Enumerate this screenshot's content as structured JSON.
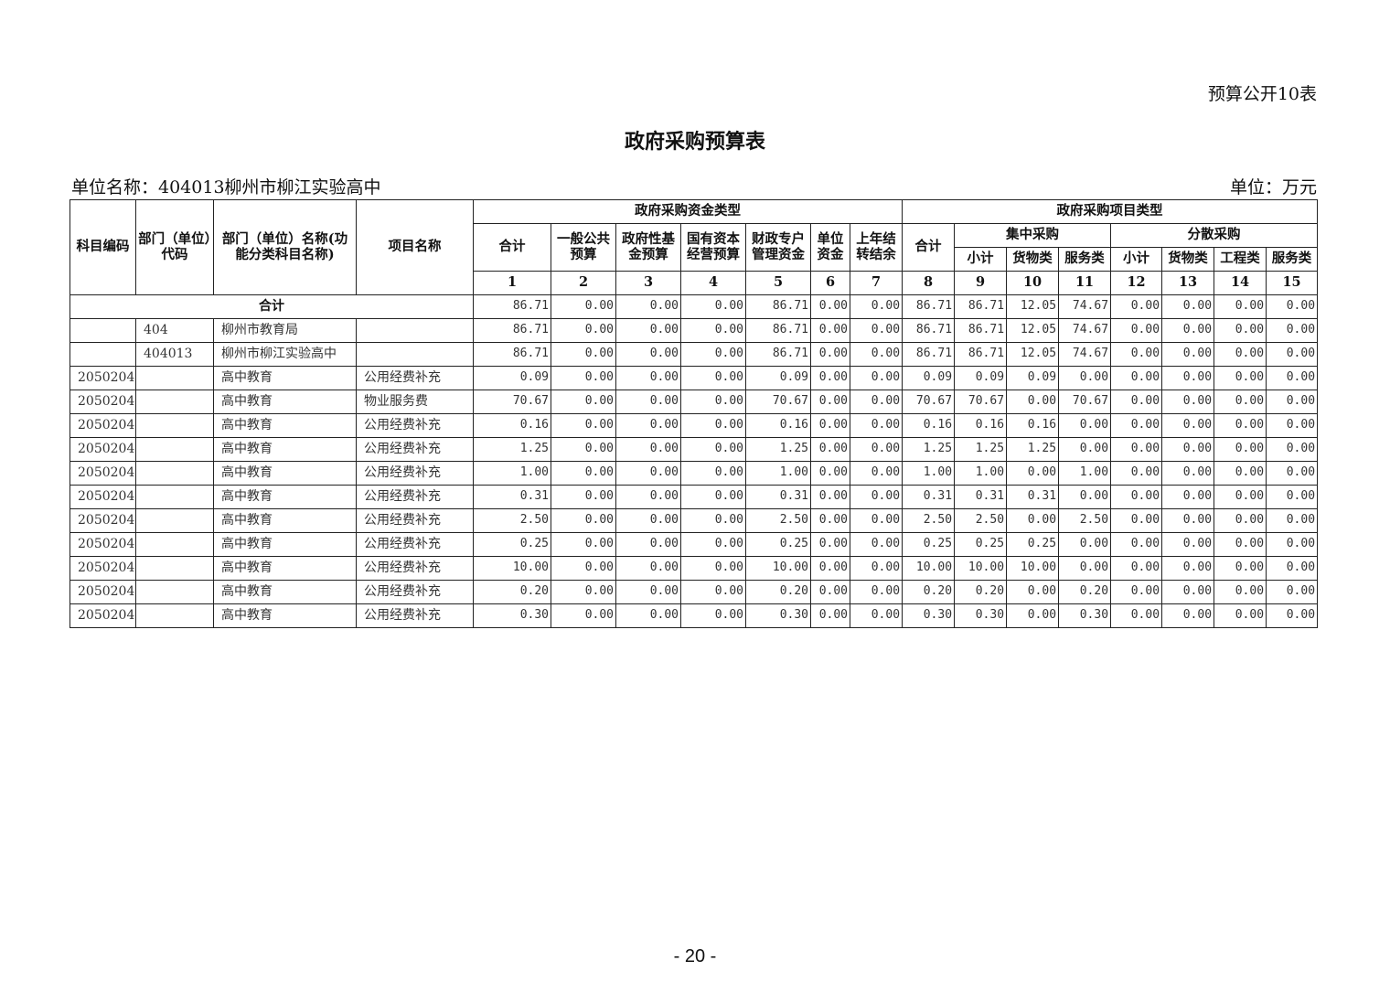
{
  "form_no": "预算公开10表",
  "title": "政府采购预算表",
  "unit_name": "单位名称：404013柳州市柳江实验高中",
  "unit": "单位：万元",
  "headers": {
    "subject_code": "科目编码",
    "dept_code": "部门（单位）代码",
    "dept_name": "部门（单位）名称(功能分类科目名称)",
    "project_name": "项目名称",
    "fund_type": "政府采购资金类型",
    "project_type": "政府采购项目类型",
    "fund_cols": [
      "合计",
      "一般公共预算",
      "政府性基金预算",
      "国有资本经营预算",
      "财政专户管理资金",
      "单位资金",
      "上年结转结余"
    ],
    "proj_total": "合计",
    "central": "集中采购",
    "dispersed": "分散采购",
    "central_cols": [
      "小计",
      "货物类",
      "服务类"
    ],
    "dispersed_cols": [
      "小计",
      "货物类",
      "工程类",
      "服务类"
    ],
    "numbers": [
      "1",
      "2",
      "3",
      "4",
      "5",
      "6",
      "7",
      "8",
      "9",
      "10",
      "11",
      "12",
      "13",
      "14",
      "15"
    ]
  },
  "total_row": {
    "label": "合计",
    "values": [
      "86.71",
      "0.00",
      "0.00",
      "0.00",
      "86.71",
      "0.00",
      "0.00",
      "86.71",
      "86.71",
      "12.05",
      "74.67",
      "0.00",
      "0.00",
      "0.00",
      "0.00"
    ]
  },
  "rows": [
    {
      "code": "",
      "dept_code": "404",
      "name": "柳州市教育局",
      "project": "",
      "values": [
        "86.71",
        "0.00",
        "0.00",
        "0.00",
        "86.71",
        "0.00",
        "0.00",
        "86.71",
        "86.71",
        "12.05",
        "74.67",
        "0.00",
        "0.00",
        "0.00",
        "0.00"
      ]
    },
    {
      "code": "",
      "dept_code": "404013",
      "name": "柳州市柳江实验高中",
      "project": "",
      "values": [
        "86.71",
        "0.00",
        "0.00",
        "0.00",
        "86.71",
        "0.00",
        "0.00",
        "86.71",
        "86.71",
        "12.05",
        "74.67",
        "0.00",
        "0.00",
        "0.00",
        "0.00"
      ]
    },
    {
      "code": "2050204",
      "dept_code": "",
      "name": "高中教育",
      "project": "公用经费补充",
      "values": [
        "0.09",
        "0.00",
        "0.00",
        "0.00",
        "0.09",
        "0.00",
        "0.00",
        "0.09",
        "0.09",
        "0.09",
        "0.00",
        "0.00",
        "0.00",
        "0.00",
        "0.00"
      ]
    },
    {
      "code": "2050204",
      "dept_code": "",
      "name": "高中教育",
      "project": "物业服务费",
      "values": [
        "70.67",
        "0.00",
        "0.00",
        "0.00",
        "70.67",
        "0.00",
        "0.00",
        "70.67",
        "70.67",
        "0.00",
        "70.67",
        "0.00",
        "0.00",
        "0.00",
        "0.00"
      ]
    },
    {
      "code": "2050204",
      "dept_code": "",
      "name": "高中教育",
      "project": "公用经费补充",
      "values": [
        "0.16",
        "0.00",
        "0.00",
        "0.00",
        "0.16",
        "0.00",
        "0.00",
        "0.16",
        "0.16",
        "0.16",
        "0.00",
        "0.00",
        "0.00",
        "0.00",
        "0.00"
      ]
    },
    {
      "code": "2050204",
      "dept_code": "",
      "name": "高中教育",
      "project": "公用经费补充",
      "values": [
        "1.25",
        "0.00",
        "0.00",
        "0.00",
        "1.25",
        "0.00",
        "0.00",
        "1.25",
        "1.25",
        "1.25",
        "0.00",
        "0.00",
        "0.00",
        "0.00",
        "0.00"
      ]
    },
    {
      "code": "2050204",
      "dept_code": "",
      "name": "高中教育",
      "project": "公用经费补充",
      "values": [
        "1.00",
        "0.00",
        "0.00",
        "0.00",
        "1.00",
        "0.00",
        "0.00",
        "1.00",
        "1.00",
        "0.00",
        "1.00",
        "0.00",
        "0.00",
        "0.00",
        "0.00"
      ]
    },
    {
      "code": "2050204",
      "dept_code": "",
      "name": "高中教育",
      "project": "公用经费补充",
      "values": [
        "0.31",
        "0.00",
        "0.00",
        "0.00",
        "0.31",
        "0.00",
        "0.00",
        "0.31",
        "0.31",
        "0.31",
        "0.00",
        "0.00",
        "0.00",
        "0.00",
        "0.00"
      ]
    },
    {
      "code": "2050204",
      "dept_code": "",
      "name": "高中教育",
      "project": "公用经费补充",
      "values": [
        "2.50",
        "0.00",
        "0.00",
        "0.00",
        "2.50",
        "0.00",
        "0.00",
        "2.50",
        "2.50",
        "0.00",
        "2.50",
        "0.00",
        "0.00",
        "0.00",
        "0.00"
      ]
    },
    {
      "code": "2050204",
      "dept_code": "",
      "name": "高中教育",
      "project": "公用经费补充",
      "values": [
        "0.25",
        "0.00",
        "0.00",
        "0.00",
        "0.25",
        "0.00",
        "0.00",
        "0.25",
        "0.25",
        "0.25",
        "0.00",
        "0.00",
        "0.00",
        "0.00",
        "0.00"
      ]
    },
    {
      "code": "2050204",
      "dept_code": "",
      "name": "高中教育",
      "project": "公用经费补充",
      "values": [
        "10.00",
        "0.00",
        "0.00",
        "0.00",
        "10.00",
        "0.00",
        "0.00",
        "10.00",
        "10.00",
        "10.00",
        "0.00",
        "0.00",
        "0.00",
        "0.00",
        "0.00"
      ]
    },
    {
      "code": "2050204",
      "dept_code": "",
      "name": "高中教育",
      "project": "公用经费补充",
      "values": [
        "0.20",
        "0.00",
        "0.00",
        "0.00",
        "0.20",
        "0.00",
        "0.00",
        "0.20",
        "0.20",
        "0.00",
        "0.20",
        "0.00",
        "0.00",
        "0.00",
        "0.00"
      ]
    },
    {
      "code": "2050204",
      "dept_code": "",
      "name": "高中教育",
      "project": "公用经费补充",
      "values": [
        "0.30",
        "0.00",
        "0.00",
        "0.00",
        "0.30",
        "0.00",
        "0.00",
        "0.30",
        "0.30",
        "0.00",
        "0.30",
        "0.00",
        "0.00",
        "0.00",
        "0.00"
      ]
    }
  ],
  "page_number": "- 20 -"
}
